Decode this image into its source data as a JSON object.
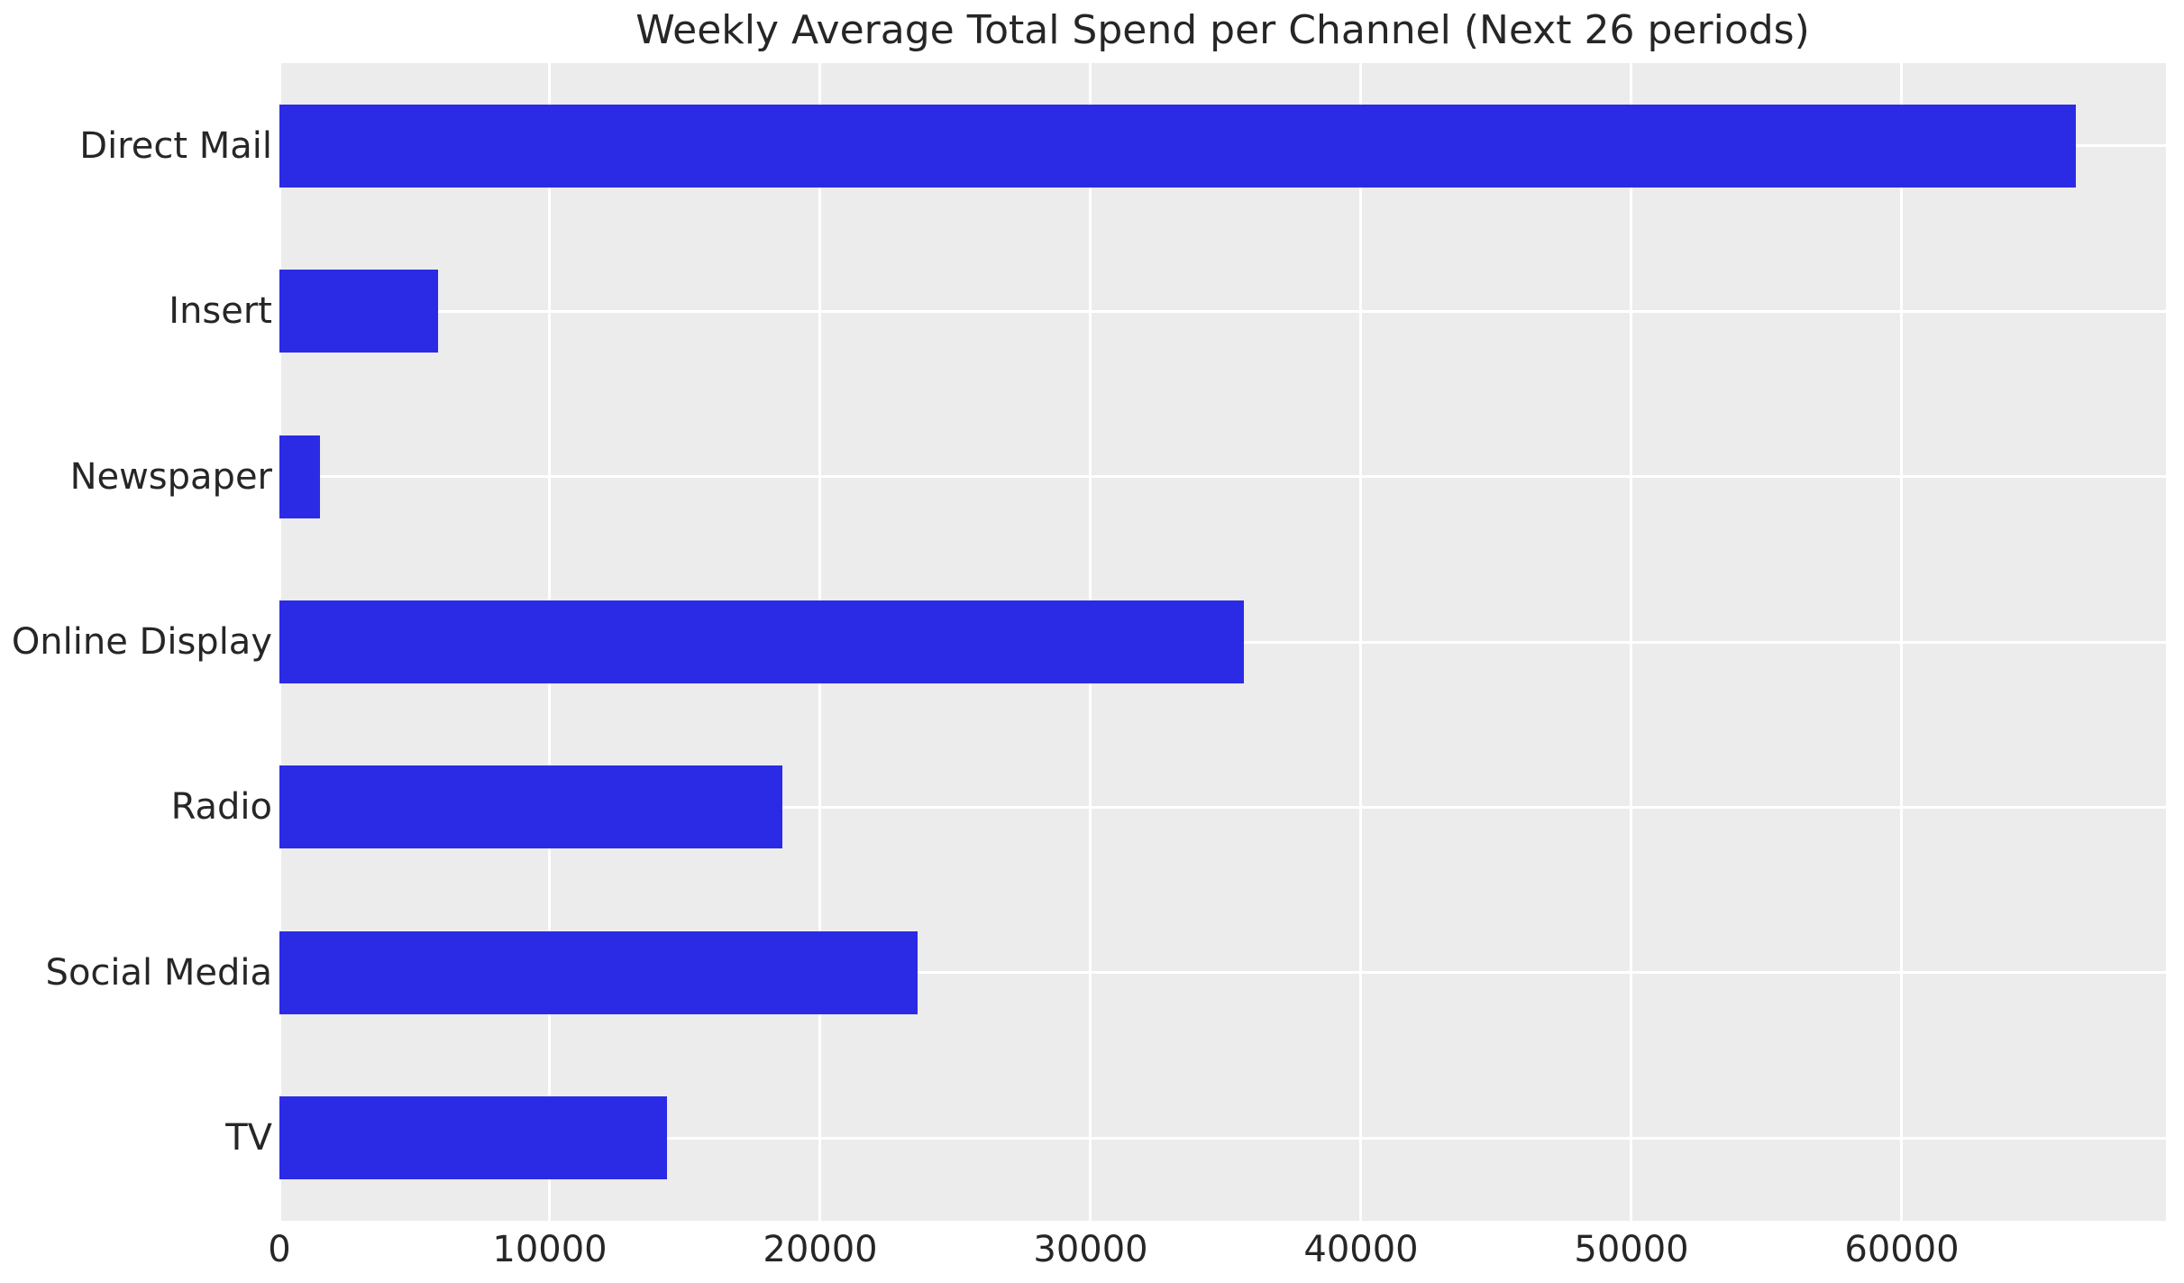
{
  "chart_data": {
    "type": "bar",
    "orientation": "horizontal",
    "title": "Weekly Average Total Spend per Channel (Next 26 periods)",
    "categories": [
      "Direct Mail",
      "Insert",
      "Newspaper",
      "Online Display",
      "Radio",
      "Social Media",
      "TV"
    ],
    "values": [
      66450,
      5870,
      1500,
      35670,
      18600,
      23600,
      14330
    ],
    "xlabel": "",
    "ylabel": "",
    "xlim": [
      0,
      69770
    ],
    "x_ticks": [
      0,
      10000,
      20000,
      30000,
      40000,
      50000,
      60000
    ],
    "x_tick_labels": [
      "0",
      "10000",
      "20000",
      "30000",
      "40000",
      "50000",
      "60000"
    ],
    "grid": true,
    "legend": false,
    "colors": {
      "bar": "#2b2be5",
      "plot_background": "#ececec",
      "figure_background": "#ffffff",
      "gridline": "#ffffff",
      "text": "#262626"
    }
  }
}
